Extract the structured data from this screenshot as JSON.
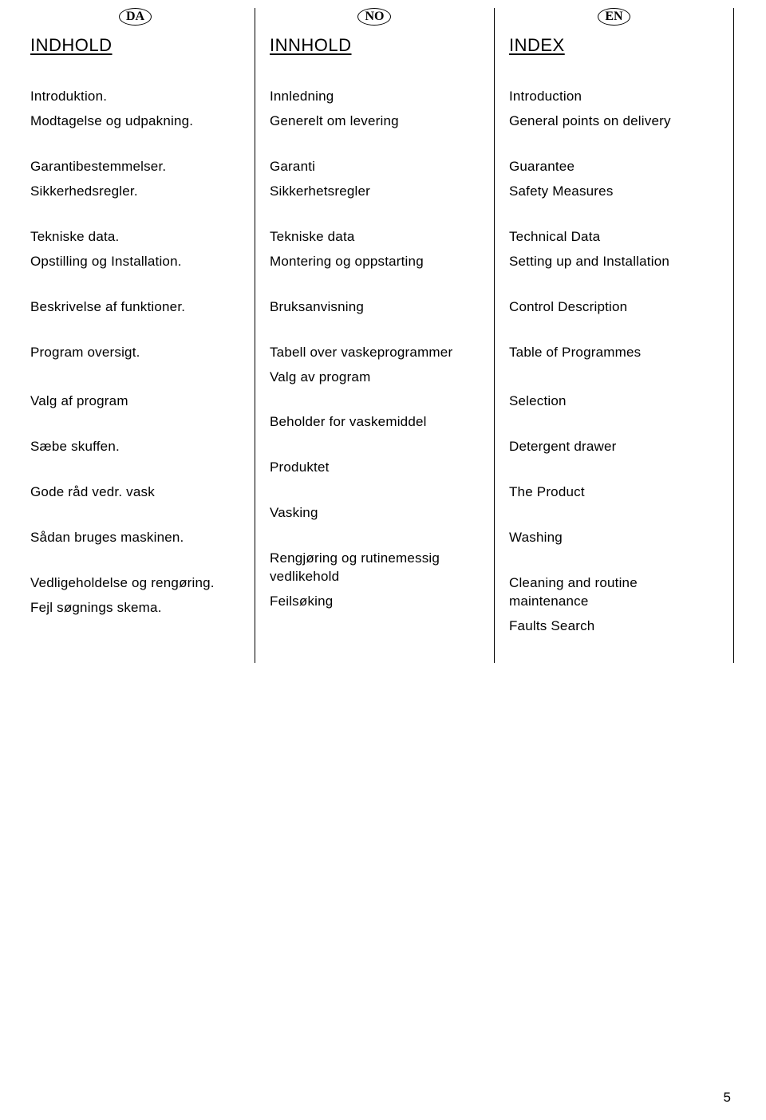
{
  "page_number": "5",
  "columns": [
    {
      "lang_badge": "DA",
      "title": "INDHOLD",
      "groups": [
        [
          "Introduktion.",
          "Modtagelse og udpakning."
        ],
        [
          "Garantibestemmelser.",
          "Sikkerhedsregler."
        ],
        [
          "Tekniske data.",
          "Opstilling og Installation."
        ],
        [
          "Beskrivelse af funktioner."
        ],
        [
          "Program oversigt.",
          "",
          "Valg af program"
        ],
        [
          "Sæbe skuffen."
        ],
        [
          "Gode råd vedr. vask"
        ],
        [
          "Sådan bruges maskinen."
        ],
        [
          "Vedligeholdelse og rengøring.",
          "Fejl søgnings skema."
        ]
      ]
    },
    {
      "lang_badge": "NO",
      "title": "INNHOLD",
      "groups": [
        [
          "Innledning",
          "Generelt om levering"
        ],
        [
          "Garanti",
          "Sikkerhetsregler"
        ],
        [
          "Tekniske data",
          "Montering og oppstarting"
        ],
        [
          "Bruksanvisning"
        ],
        [
          "Tabell over vaskeprogrammer",
          "Valg av program"
        ],
        [
          "Beholder for vaskemiddel"
        ],
        [
          "Produktet"
        ],
        [
          "Vasking"
        ],
        [
          "Rengjøring og rutinemessig vedlikehold",
          "Feilsøking"
        ]
      ]
    },
    {
      "lang_badge": "EN",
      "title": "INDEX",
      "groups": [
        [
          "Introduction",
          "General points on delivery"
        ],
        [
          "Guarantee",
          "Safety Measures"
        ],
        [
          "Technical Data",
          "Setting up and Installation"
        ],
        [
          "Control Description"
        ],
        [
          "Table of Programmes",
          "",
          "Selection"
        ],
        [
          "Detergent drawer"
        ],
        [
          "The Product"
        ],
        [
          "Washing"
        ],
        [
          "Cleaning and routine maintenance",
          "Faults Search"
        ]
      ]
    }
  ]
}
